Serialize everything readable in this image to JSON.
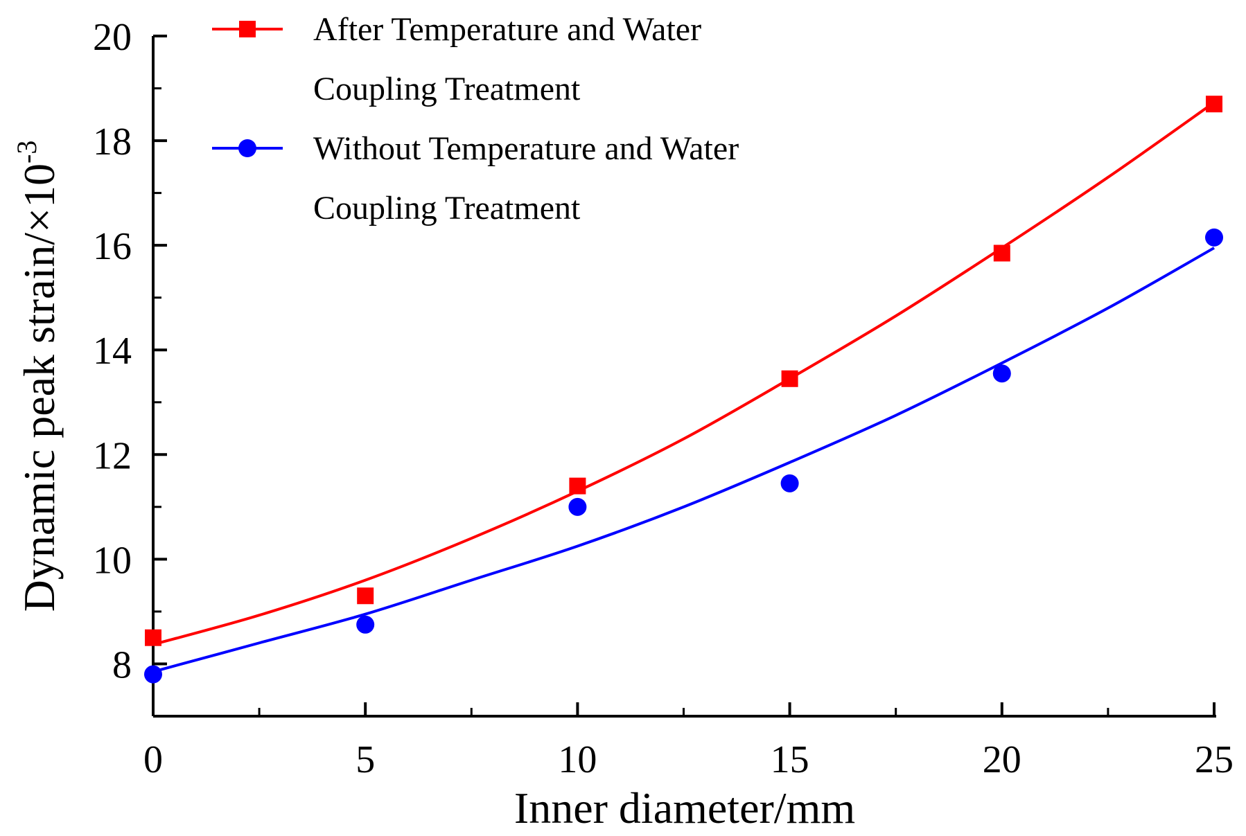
{
  "chart_data": {
    "type": "scatter",
    "title": "",
    "xlabel": "Inner diameter/mm",
    "ylabel": "Dynamic peak strain/×10",
    "ylabel_superscript": "-3",
    "xlim": [
      0,
      25
    ],
    "ylim": [
      7,
      20
    ],
    "xticks": [
      0,
      5,
      10,
      15,
      20,
      25
    ],
    "xtick_labels": [
      "0",
      "5",
      "10",
      "15",
      "20",
      "25"
    ],
    "yticks": [
      8,
      10,
      12,
      14,
      16,
      18,
      20
    ],
    "ytick_labels": [
      "8",
      "10",
      "12",
      "14",
      "16",
      "18",
      "20"
    ],
    "grid": false,
    "legend_position": "top-left",
    "series": [
      {
        "name": "After Temperature and Water Coupling Treatment",
        "legend_lines": [
          "After Temperature and Water",
          "Coupling Treatment"
        ],
        "marker": "square",
        "color": "#ff0000",
        "x": [
          0,
          5,
          10,
          15,
          20,
          25
        ],
        "y": [
          8.5,
          9.3,
          11.4,
          13.45,
          15.85,
          18.7
        ],
        "fit_x": [
          0,
          2.5,
          5,
          7.5,
          10,
          12.5,
          15,
          17.5,
          20,
          22.5,
          25
        ],
        "fit_y": [
          8.37,
          8.93,
          9.6,
          10.4,
          11.3,
          12.3,
          13.45,
          14.65,
          15.95,
          17.3,
          18.73
        ]
      },
      {
        "name": "Without Temperature and Water Coupling Treatment",
        "legend_lines": [
          "Without Temperature and Water",
          "Coupling Treatment"
        ],
        "marker": "circle",
        "color": "#0000ff",
        "x": [
          0,
          5,
          10,
          15,
          20,
          25
        ],
        "y": [
          7.8,
          8.75,
          11.0,
          11.45,
          13.55,
          16.15
        ],
        "fit_x": [
          0,
          2.5,
          5,
          7.5,
          10,
          12.5,
          15,
          17.5,
          20,
          22.5,
          25
        ],
        "fit_y": [
          7.85,
          8.4,
          8.95,
          9.6,
          10.25,
          11.0,
          11.85,
          12.75,
          13.75,
          14.8,
          15.95
        ]
      }
    ]
  }
}
